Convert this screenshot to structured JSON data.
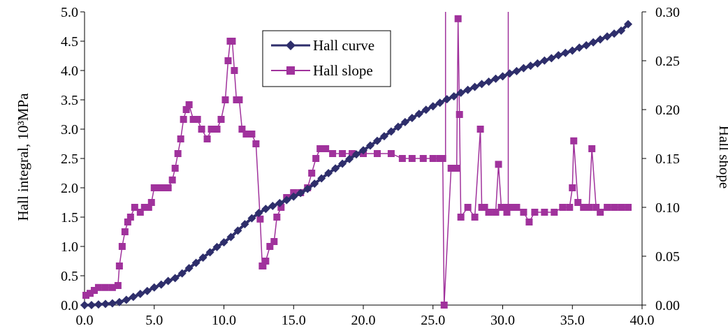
{
  "chart_data": {
    "type": "line",
    "title": "",
    "xlabel": "",
    "ylabel": "Hall integral, 10³MPa",
    "y2label": "Hall shope",
    "xlim": [
      0,
      40
    ],
    "ylim": [
      0,
      5
    ],
    "y2lim": [
      0,
      0.3
    ],
    "grid": false,
    "legend_position": "top-center",
    "x_ticks": [
      "0.0",
      "5.0",
      "10.0",
      "15.0",
      "20.0",
      "25.0",
      "30.0",
      "35.0",
      "40.0"
    ],
    "y_ticks": [
      "0.0",
      "0.5",
      "1.0",
      "1.5",
      "2.0",
      "2.5",
      "3.0",
      "3.5",
      "4.0",
      "4.5",
      "5.0"
    ],
    "y2_ticks": [
      "0.00",
      "0.05",
      "0.10",
      "0.15",
      "0.20",
      "0.25",
      "0.30"
    ],
    "series": [
      {
        "name": "Hall curve",
        "axis": "left",
        "color": "#2e2e6b",
        "marker": "diamond",
        "x": [
          0.0,
          0.5,
          1.0,
          1.5,
          2.0,
          2.5,
          3.0,
          3.5,
          4.0,
          4.5,
          5.0,
          5.5,
          6.0,
          6.5,
          7.0,
          7.5,
          8.0,
          8.5,
          9.0,
          9.5,
          10.0,
          10.5,
          11.0,
          11.5,
          12.0,
          12.5,
          13.0,
          13.5,
          14.0,
          14.5,
          15.0,
          15.5,
          16.0,
          16.5,
          17.0,
          17.5,
          18.0,
          18.5,
          19.0,
          19.5,
          20.0,
          20.5,
          21.0,
          21.5,
          22.0,
          22.5,
          23.0,
          23.5,
          24.0,
          24.5,
          25.0,
          25.5,
          26.0,
          26.5,
          27.0,
          27.5,
          28.0,
          28.5,
          29.0,
          29.5,
          30.0,
          30.5,
          31.0,
          31.5,
          32.0,
          32.5,
          33.0,
          33.5,
          34.0,
          34.5,
          35.0,
          35.5,
          36.0,
          36.5,
          37.0,
          37.5,
          38.0,
          38.5,
          39.0
        ],
        "y": [
          0.0,
          0.0,
          0.01,
          0.02,
          0.03,
          0.05,
          0.09,
          0.14,
          0.19,
          0.24,
          0.3,
          0.35,
          0.41,
          0.46,
          0.54,
          0.63,
          0.72,
          0.81,
          0.9,
          0.99,
          1.07,
          1.16,
          1.27,
          1.38,
          1.48,
          1.57,
          1.64,
          1.69,
          1.74,
          1.79,
          1.85,
          1.91,
          1.98,
          2.07,
          2.16,
          2.25,
          2.33,
          2.41,
          2.49,
          2.57,
          2.64,
          2.72,
          2.8,
          2.88,
          2.96,
          3.04,
          3.12,
          3.19,
          3.26,
          3.33,
          3.39,
          3.45,
          3.51,
          3.56,
          3.62,
          3.67,
          3.72,
          3.77,
          3.81,
          3.86,
          3.9,
          3.95,
          3.99,
          4.04,
          4.08,
          4.12,
          4.17,
          4.21,
          4.26,
          4.3,
          4.34,
          4.39,
          4.43,
          4.48,
          4.53,
          4.58,
          4.63,
          4.68,
          4.79
        ]
      },
      {
        "name": "Hall slope",
        "axis": "right",
        "color": "#a0329c",
        "marker": "square",
        "x": [
          0.1,
          0.4,
          0.7,
          1.0,
          1.5,
          2.0,
          2.4,
          2.5,
          2.7,
          2.9,
          3.1,
          3.3,
          3.6,
          4.0,
          4.3,
          4.6,
          4.8,
          5.0,
          5.3,
          5.6,
          6.0,
          6.3,
          6.5,
          6.7,
          6.9,
          7.1,
          7.3,
          7.5,
          7.8,
          8.1,
          8.4,
          8.8,
          9.1,
          9.5,
          9.8,
          10.1,
          10.3,
          10.45,
          10.6,
          10.75,
          10.9,
          11.1,
          11.3,
          11.6,
          12.0,
          12.3,
          12.6,
          12.75,
          12.8,
          13.0,
          13.3,
          13.6,
          13.8,
          14.1,
          14.5,
          15.0,
          15.5,
          16.0,
          16.3,
          16.6,
          16.9,
          17.3,
          17.8,
          18.5,
          19.2,
          20.0,
          21.0,
          22.0,
          22.8,
          23.5,
          24.3,
          25.0,
          25.5,
          25.7,
          25.8,
          26.3,
          26.7,
          26.8,
          26.9,
          27.0,
          27.5,
          28.0,
          28.4,
          28.5,
          28.7,
          29.0,
          29.5,
          29.7,
          29.9,
          30.2,
          30.3,
          30.6,
          31.0,
          31.5,
          31.9,
          32.3,
          33.0,
          33.7,
          34.3,
          34.8,
          35.0,
          35.1,
          35.4,
          35.8,
          36.2,
          36.4,
          36.7,
          37.0,
          37.5,
          38.0,
          38.5,
          39.0
        ],
        "y": [
          0.01,
          0.012,
          0.015,
          0.018,
          0.018,
          0.018,
          0.02,
          0.04,
          0.06,
          0.075,
          0.085,
          0.09,
          0.1,
          0.095,
          0.1,
          0.1,
          0.105,
          0.12,
          0.12,
          0.12,
          0.12,
          0.128,
          0.14,
          0.155,
          0.17,
          0.19,
          0.2,
          0.205,
          0.19,
          0.19,
          0.18,
          0.17,
          0.18,
          0.18,
          0.19,
          0.21,
          0.25,
          0.27,
          0.27,
          0.24,
          0.21,
          0.21,
          0.18,
          0.175,
          0.175,
          0.165,
          0.088,
          0.04,
          0.04,
          0.045,
          0.06,
          0.065,
          0.09,
          0.1,
          0.11,
          0.115,
          0.115,
          0.12,
          0.135,
          0.15,
          0.16,
          0.16,
          0.155,
          0.155,
          0.155,
          0.155,
          0.155,
          0.155,
          0.15,
          0.15,
          0.15,
          0.15,
          0.15,
          0.15,
          0.0,
          0.14,
          0.14,
          0.293,
          0.195,
          0.09,
          0.1,
          0.09,
          0.18,
          0.1,
          0.1,
          0.095,
          0.095,
          0.144,
          0.1,
          0.1,
          0.095,
          0.1,
          0.1,
          0.095,
          0.085,
          0.095,
          0.095,
          0.095,
          0.1,
          0.1,
          0.12,
          0.168,
          0.105,
          0.1,
          0.1,
          0.16,
          0.1,
          0.095,
          0.1,
          0.1,
          0.1,
          0.1
        ],
        "spikes": [
          {
            "x": 25.9,
            "y_from": 0.15,
            "y_to": 0.3
          },
          {
            "x": 30.4,
            "y_from": 0.1,
            "y_to": 0.3
          }
        ]
      }
    ]
  }
}
